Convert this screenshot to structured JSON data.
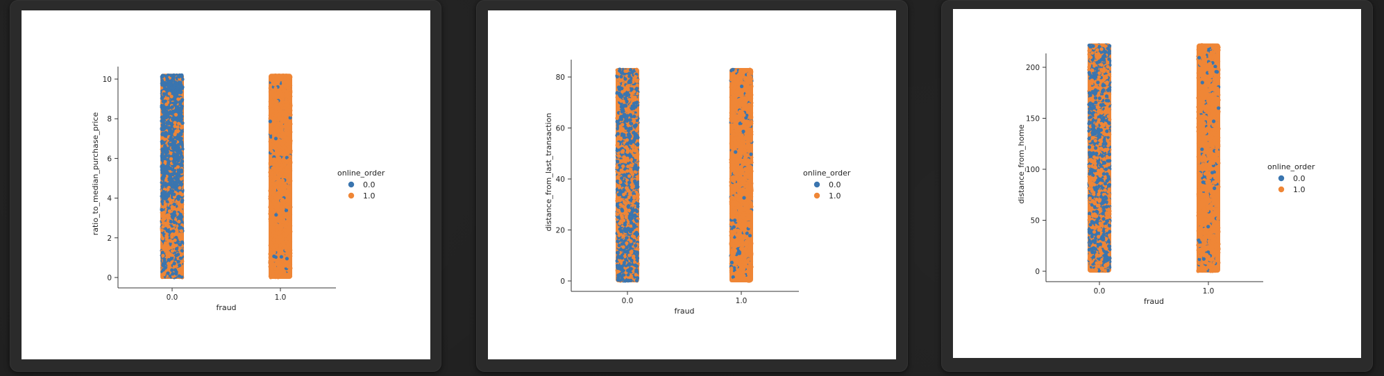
{
  "colors": {
    "online_0": "#3a75af",
    "online_1": "#ef8636"
  },
  "chart_data": [
    {
      "type": "scatter",
      "subtype": "stripplot",
      "xlabel": "fraud",
      "ylabel": "ratio_to_median_purchase_price",
      "categories": [
        "0.0",
        "1.0"
      ],
      "yticks": [
        0,
        2,
        4,
        6,
        8,
        10
      ],
      "ylim": [
        0,
        10.3
      ],
      "legend": {
        "title": "online_order",
        "entries": [
          "0.0",
          "1.0"
        ],
        "placement": "right"
      },
      "series": [
        {
          "name": "0.0",
          "color": "#3a75af",
          "strips": [
            {
              "category": "0.0",
              "min": 0,
              "max": 10.2
            },
            {
              "category": "1.0",
              "min": 0,
              "max": 10.2
            }
          ]
        },
        {
          "name": "1.0",
          "color": "#ef8636",
          "strips": [
            {
              "category": "0.0",
              "min": 0,
              "max": 10.2
            },
            {
              "category": "1.0",
              "min": 0,
              "max": 10.2
            }
          ]
        }
      ],
      "blue_dominant_above": {
        "0.0": 4.0
      }
    },
    {
      "type": "scatter",
      "subtype": "stripplot",
      "xlabel": "fraud",
      "ylabel": "distance_from_last_transaction",
      "categories": [
        "0.0",
        "1.0"
      ],
      "yticks": [
        0,
        20,
        40,
        60,
        80
      ],
      "ylim": [
        0,
        83
      ],
      "legend": {
        "title": "online_order",
        "entries": [
          "0.0",
          "1.0"
        ],
        "placement": "right"
      },
      "series": [
        {
          "name": "0.0",
          "color": "#3a75af",
          "strips": [
            {
              "category": "0.0",
              "min": 0,
              "max": 83
            },
            {
              "category": "1.0",
              "min": 0,
              "max": 83
            }
          ]
        },
        {
          "name": "1.0",
          "color": "#ef8636",
          "strips": [
            {
              "category": "0.0",
              "min": 0,
              "max": 83
            },
            {
              "category": "1.0",
              "min": 0,
              "max": 83
            }
          ]
        }
      ]
    },
    {
      "type": "scatter",
      "subtype": "stripplot",
      "xlabel": "fraud",
      "ylabel": "distance_from_home",
      "categories": [
        "0.0",
        "1.0"
      ],
      "yticks": [
        0,
        50,
        100,
        150,
        200
      ],
      "ylim": [
        0,
        222
      ],
      "legend": {
        "title": "online_order",
        "entries": [
          "0.0",
          "1.0"
        ],
        "placement": "right"
      },
      "series": [
        {
          "name": "0.0",
          "color": "#3a75af",
          "strips": [
            {
              "category": "0.0",
              "min": 0,
              "max": 222
            },
            {
              "category": "1.0",
              "min": 0,
              "max": 222
            }
          ]
        },
        {
          "name": "1.0",
          "color": "#ef8636",
          "strips": [
            {
              "category": "0.0",
              "min": 0,
              "max": 222
            },
            {
              "category": "1.0",
              "min": 0,
              "max": 222
            }
          ]
        }
      ]
    }
  ]
}
